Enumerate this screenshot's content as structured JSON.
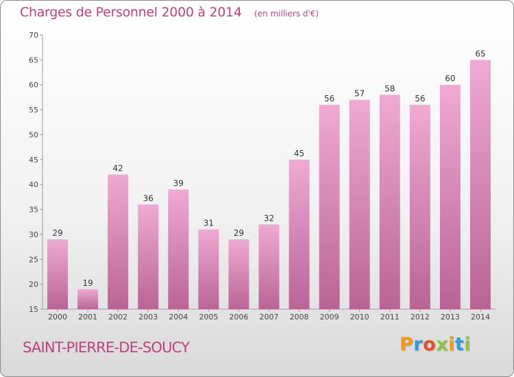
{
  "title": "Charges de Personnel 2000 à 2014",
  "subtitle": "(en milliers d'€)",
  "place_name": "SAINT-PIERRE-DE-SOUCY",
  "logo": {
    "text": "Proxiti",
    "letters": [
      {
        "char": "P",
        "color": "#f39a1c"
      },
      {
        "char": "r",
        "color": "#2e9be0"
      },
      {
        "char": "o",
        "color": "#e8502a"
      },
      {
        "char": "x",
        "color": "#8cc63e"
      },
      {
        "char": "i",
        "color": "#f39a1c"
      },
      {
        "char": "t",
        "color": "#2e9be0"
      },
      {
        "char": "i",
        "color": "#8cc63e"
      }
    ]
  },
  "colors": {
    "accent": "#c0407f",
    "bar_top": "#efaad3",
    "bar_bottom": "#b96495",
    "grid": "#cccccc"
  },
  "chart_data": {
    "type": "bar",
    "title": "Charges de Personnel 2000 à 2014",
    "subtitle": "(en milliers d'€)",
    "xlabel": "",
    "ylabel": "",
    "categories": [
      "2000",
      "2001",
      "2002",
      "2003",
      "2004",
      "2005",
      "2006",
      "2007",
      "2008",
      "2009",
      "2010",
      "2011",
      "2012",
      "2013",
      "2014"
    ],
    "values": [
      29,
      19,
      42,
      36,
      39,
      31,
      29,
      32,
      45,
      56,
      57,
      58,
      56,
      60,
      65
    ],
    "ylim": [
      15,
      70
    ],
    "yticks": [
      15,
      20,
      25,
      30,
      35,
      40,
      45,
      50,
      55,
      60,
      65,
      70
    ],
    "grid": false,
    "data_labels": true
  }
}
